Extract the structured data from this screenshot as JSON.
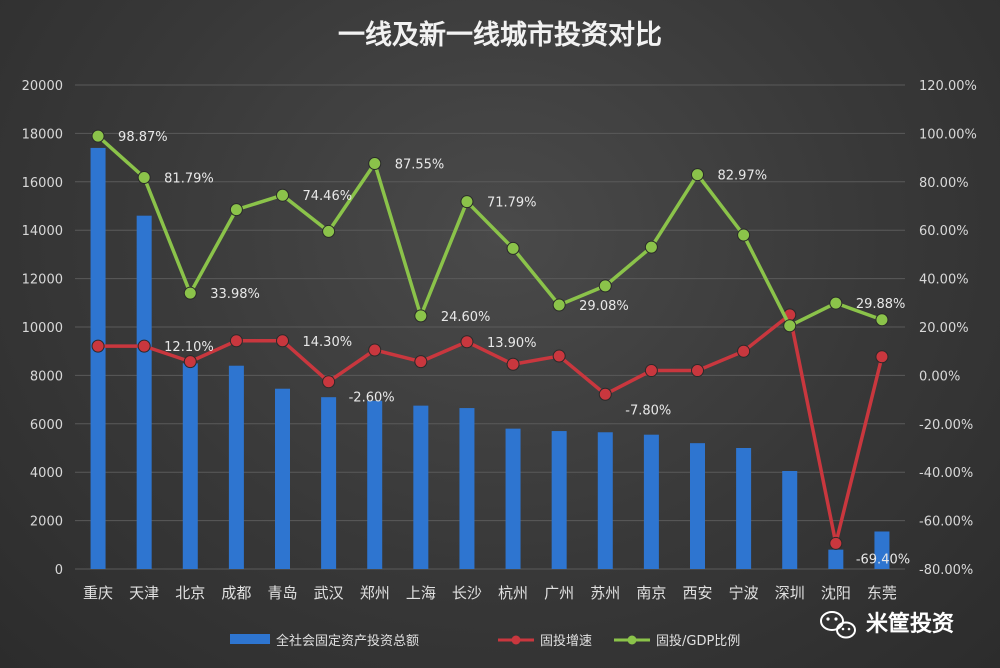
{
  "chart_data": {
    "type": "bar",
    "title": "一线及新一线城市投资对比",
    "categories": [
      "重庆",
      "天津",
      "北京",
      "成都",
      "青岛",
      "武汉",
      "郑州",
      "上海",
      "长沙",
      "杭州",
      "广州",
      "苏州",
      "南京",
      "西安",
      "宁波",
      "深圳",
      "沈阳",
      "东莞"
    ],
    "y_left": {
      "min": 0,
      "max": 20000,
      "step": 2000,
      "ticks": [
        "0",
        "2000",
        "4000",
        "6000",
        "8000",
        "10000",
        "12000",
        "14000",
        "16000",
        "18000",
        "20000"
      ]
    },
    "y_right": {
      "min": -80,
      "max": 120,
      "step": 20,
      "ticks": [
        "-80.00%",
        "-60.00%",
        "-40.00%",
        "-20.00%",
        "0.00%",
        "20.00%",
        "40.00%",
        "60.00%",
        "80.00%",
        "100.00%",
        "120.00%"
      ]
    },
    "series": [
      {
        "name": "全社会固定资产投资总额",
        "type": "bar",
        "axis": "left",
        "color": "#2e75d0",
        "values": [
          17400,
          14600,
          8500,
          8400,
          7450,
          7100,
          6950,
          6750,
          6650,
          5800,
          5700,
          5650,
          5550,
          5200,
          5000,
          4050,
          800,
          1550
        ]
      },
      {
        "name": "固投增速",
        "type": "line",
        "axis": "right",
        "color": "#c9373e",
        "values": [
          12.1,
          12.1,
          5.7,
          14.3,
          14.3,
          -2.6,
          10.5,
          5.7,
          13.9,
          4.6,
          8.0,
          -7.8,
          2.0,
          2.0,
          10.0,
          25.0,
          -69.4,
          7.7
        ]
      },
      {
        "name": "固投/GDP比例",
        "type": "line",
        "axis": "right",
        "color": "#8bc34a",
        "values": [
          98.87,
          81.79,
          33.98,
          68.5,
          74.46,
          59.5,
          87.55,
          24.6,
          71.79,
          52.5,
          29.08,
          37.0,
          53.0,
          82.97,
          58.0,
          20.5,
          29.88,
          23.0
        ]
      }
    ],
    "data_labels": [
      {
        "series": 2,
        "index": 0,
        "text": "98.87%"
      },
      {
        "series": 2,
        "index": 1,
        "text": "81.79%"
      },
      {
        "series": 2,
        "index": 2,
        "text": "33.98%"
      },
      {
        "series": 2,
        "index": 4,
        "text": "74.46%"
      },
      {
        "series": 2,
        "index": 6,
        "text": "87.55%"
      },
      {
        "series": 2,
        "index": 7,
        "text": "24.60%"
      },
      {
        "series": 2,
        "index": 8,
        "text": "71.79%"
      },
      {
        "series": 2,
        "index": 10,
        "text": "29.08%"
      },
      {
        "series": 2,
        "index": 13,
        "text": "82.97%"
      },
      {
        "series": 2,
        "index": 16,
        "text": "29.88%"
      },
      {
        "series": 1,
        "index": 1,
        "text": "12.10%"
      },
      {
        "series": 1,
        "index": 4,
        "text": "14.30%"
      },
      {
        "series": 1,
        "index": 5,
        "text": "-2.60%"
      },
      {
        "series": 1,
        "index": 8,
        "text": "13.90%"
      },
      {
        "series": 1,
        "index": 11,
        "text": "-7.80%"
      },
      {
        "series": 1,
        "index": 16,
        "text": "-69.40%"
      }
    ],
    "legend_position": "bottom",
    "grid": true
  },
  "watermark": {
    "text": "米筐投资",
    "icon": "wechat-icon"
  }
}
